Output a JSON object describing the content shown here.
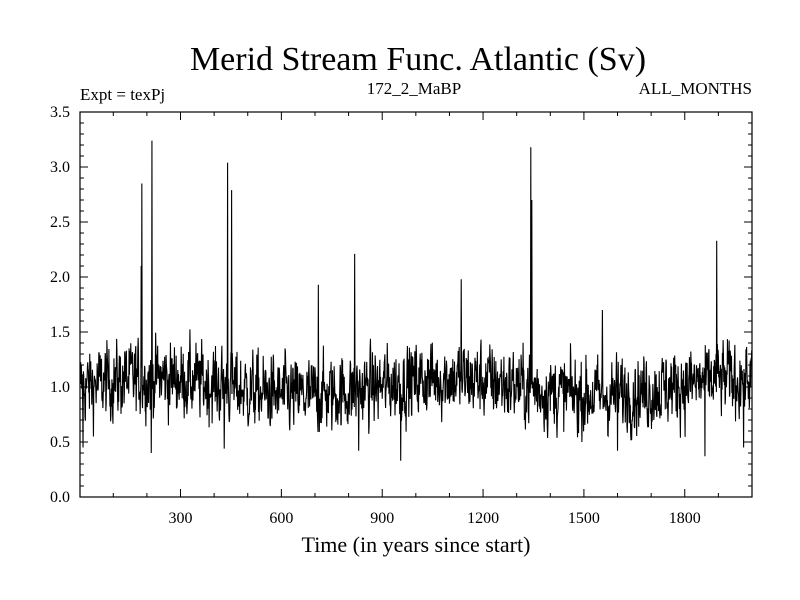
{
  "chart_data": {
    "type": "line",
    "title": "Merid Stream Func. Atlantic (Sv)",
    "header_left": "Expt = texPj",
    "header_center": "172_2_MaBP",
    "header_right": "ALL_MONTHS",
    "xlabel": "Time (in years since start)",
    "ylabel": "",
    "xlim": [
      1,
      2000
    ],
    "ylim": [
      0.0,
      3.5
    ],
    "xticks": [
      300,
      600,
      900,
      1200,
      1500,
      1800
    ],
    "xtick_labels": [
      "300",
      "600",
      "900",
      "1200",
      "1500",
      "1800"
    ],
    "yticks": [
      0.0,
      0.5,
      1.0,
      1.5,
      2.0,
      2.5,
      3.0,
      3.5
    ],
    "ytick_labels": [
      "0.0",
      "0.5",
      "1.0",
      "1.5",
      "2.0",
      "2.5",
      "3.0",
      "3.5"
    ],
    "baseline_mean": 1.0,
    "noise_amplitude": 0.2,
    "peaks": [
      {
        "x": 185,
        "y": 2.85
      },
      {
        "x": 183,
        "y": 2.1
      },
      {
        "x": 215,
        "y": 3.24
      },
      {
        "x": 440,
        "y": 3.04
      },
      {
        "x": 452,
        "y": 2.79
      },
      {
        "x": 710,
        "y": 1.93
      },
      {
        "x": 818,
        "y": 2.21
      },
      {
        "x": 1135,
        "y": 1.98
      },
      {
        "x": 1342,
        "y": 3.18
      },
      {
        "x": 1345,
        "y": 2.7
      },
      {
        "x": 1555,
        "y": 1.7
      },
      {
        "x": 1895,
        "y": 2.33
      }
    ],
    "troughs": [
      {
        "x": 10,
        "y": 0.45
      },
      {
        "x": 213,
        "y": 0.4
      },
      {
        "x": 430,
        "y": 0.44
      },
      {
        "x": 830,
        "y": 0.42
      },
      {
        "x": 955,
        "y": 0.33
      },
      {
        "x": 1600,
        "y": 0.42
      },
      {
        "x": 1860,
        "y": 0.37
      },
      {
        "x": 1975,
        "y": 0.45
      }
    ]
  }
}
